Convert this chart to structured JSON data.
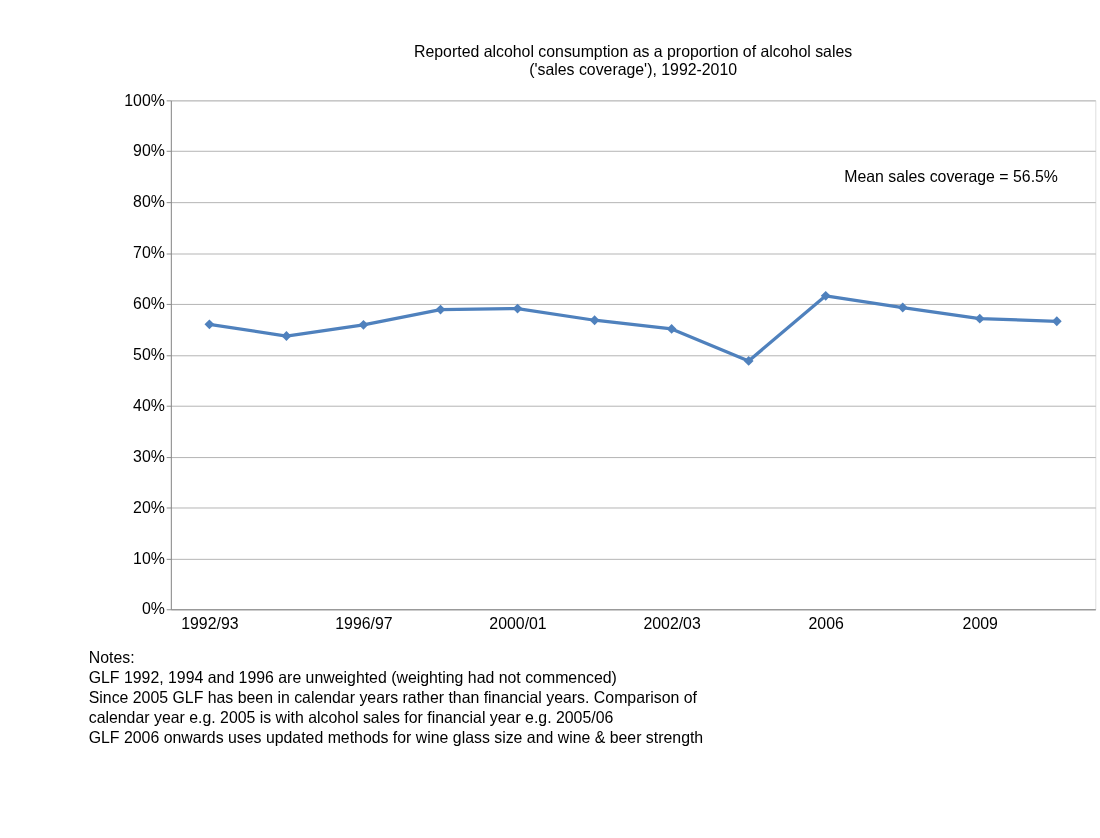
{
  "chart_data": {
    "type": "line",
    "title": "Reported alcohol consumption as a proportion of alcohol sales\n('sales coverage'), 1992-2010",
    "categories": [
      "1992/93",
      null,
      "1996/97",
      null,
      "2000/01",
      null,
      "2002/03",
      null,
      "2006",
      null,
      "2009",
      null
    ],
    "series": [
      {
        "color": "#4f81bd",
        "values": [
          56.0,
          53.7,
          55.9,
          58.9,
          59.1,
          56.8,
          55.1,
          48.8,
          61.6,
          59.3,
          57.1,
          56.6
        ]
      }
    ],
    "ylim": [
      0,
      100
    ],
    "yticks": [
      {
        "value": 0,
        "label": "0%"
      },
      {
        "value": 10,
        "label": "10%"
      },
      {
        "value": 20,
        "label": "20%"
      },
      {
        "value": 30,
        "label": "30%"
      },
      {
        "value": 40,
        "label": "40%"
      },
      {
        "value": 50,
        "label": "50%"
      },
      {
        "value": 60,
        "label": "60%"
      },
      {
        "value": 70,
        "label": "70%"
      },
      {
        "value": 80,
        "label": "80%"
      },
      {
        "value": 90,
        "label": "90%"
      },
      {
        "value": 100,
        "label": "100%"
      }
    ],
    "grid": "y",
    "marker": "diamond",
    "line_style": "solid",
    "annotations": [
      "Mean sales coverage = 56.5%",
      "Notes:",
      "GLF 1992, 1994 and 1996 are unweighted (weighting had not commenced)",
      "Since 2005 GLF has been in calendar years rather than financial years. Comparison of",
      "calendar year e.g. 2005 is with alcohol sales for financial year e.g. 2005/06",
      "GLF 2006 onwards uses updated methods for wine glass size and  wine & beer strength"
    ]
  }
}
